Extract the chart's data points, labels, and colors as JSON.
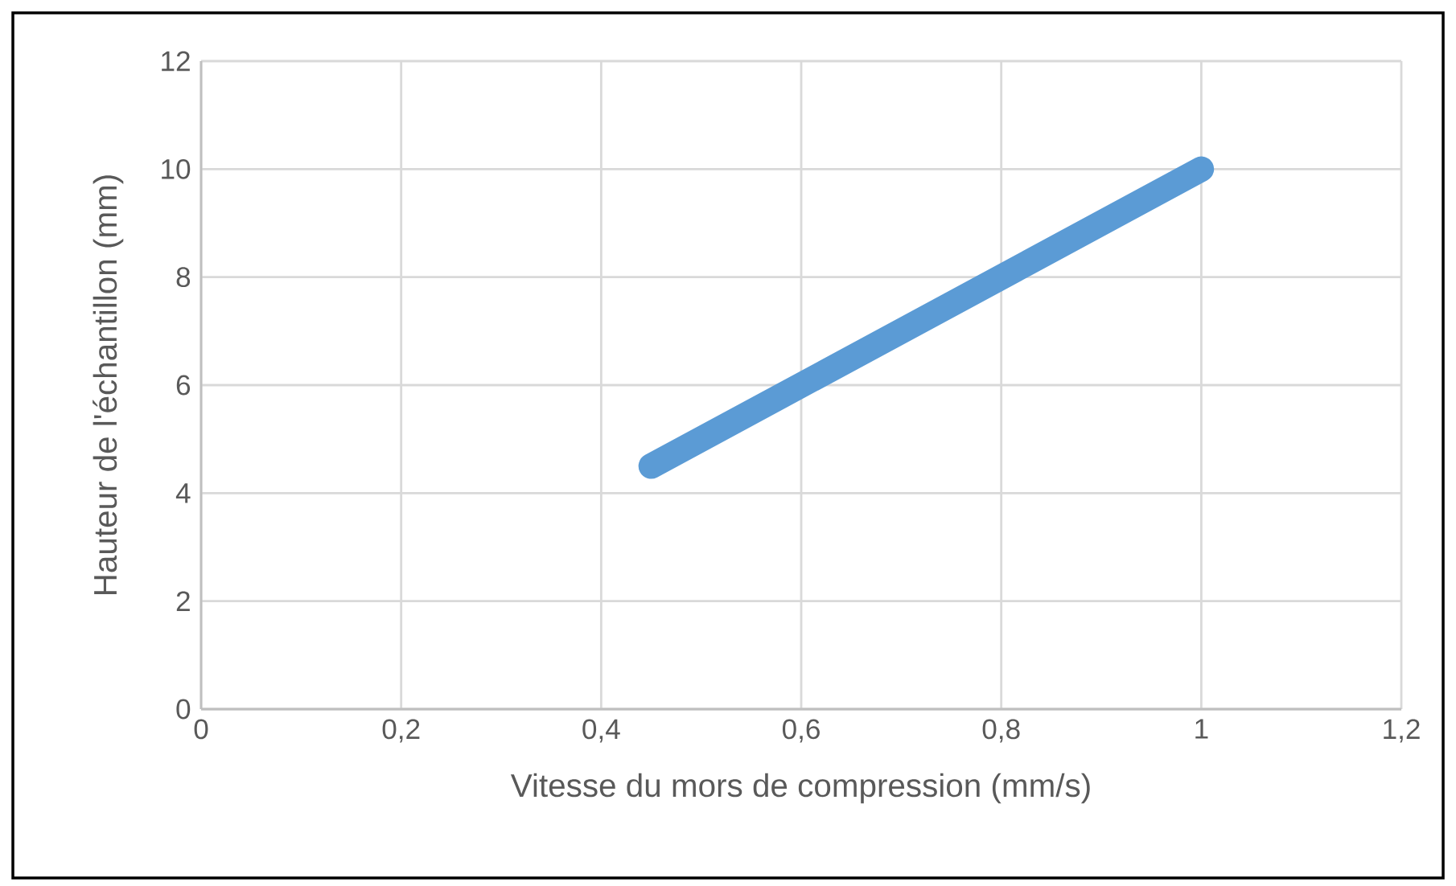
{
  "chart_data": {
    "type": "line",
    "xlabel": "Vitesse du mors de compression (mm/s)",
    "ylabel": "Hauteur de l'échantillon (mm)",
    "x": [
      0.45,
      1.0
    ],
    "series": [
      {
        "color": "#5b9bd5",
        "values": [
          4.5,
          10
        ]
      }
    ],
    "xlim": [
      0,
      1.2
    ],
    "xticks": [
      {
        "value": 0,
        "label": "0"
      },
      {
        "value": 0.2,
        "label": "0,2"
      },
      {
        "value": 0.4,
        "label": "0,4"
      },
      {
        "value": 0.6,
        "label": "0,6"
      },
      {
        "value": 0.8,
        "label": "0,8"
      },
      {
        "value": 1,
        "label": "1"
      },
      {
        "value": 1.2,
        "label": "1,2"
      }
    ],
    "ylim": [
      0,
      12
    ],
    "yticks": [
      0,
      2,
      4,
      6,
      8,
      10,
      12
    ],
    "grid": true
  }
}
